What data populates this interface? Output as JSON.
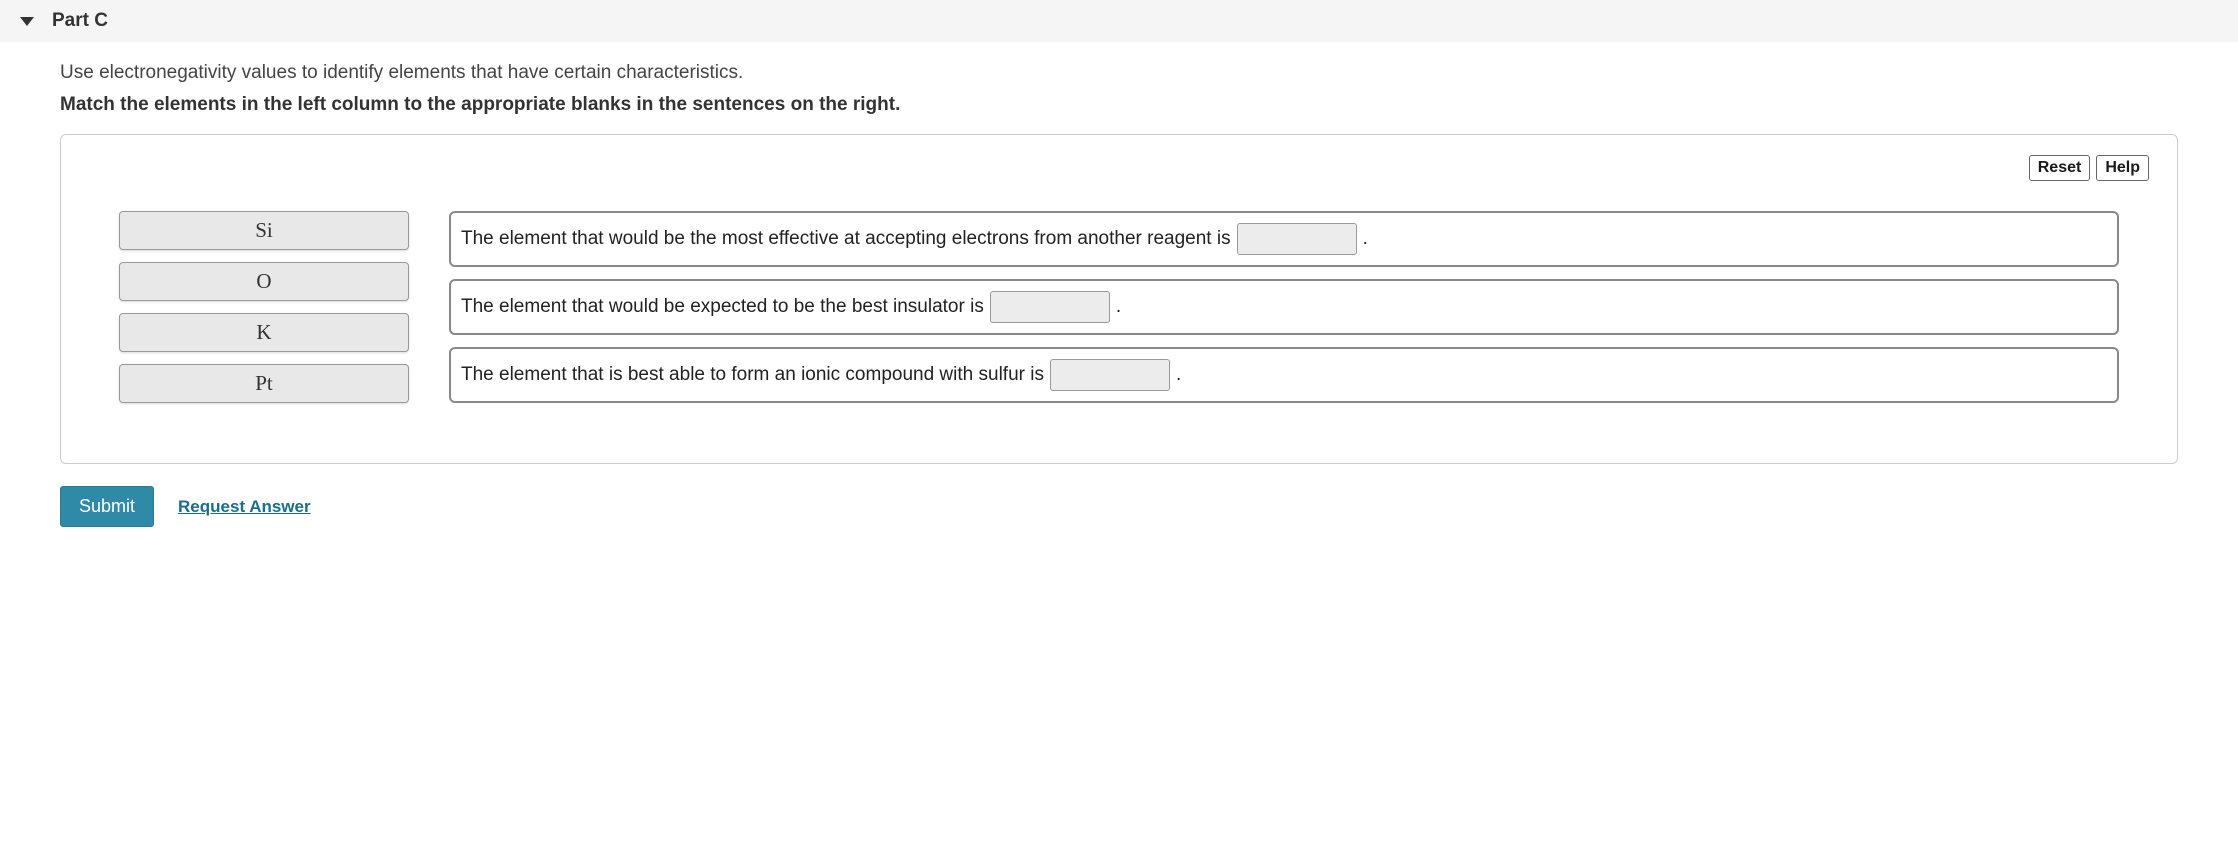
{
  "header": {
    "part_label": "Part C"
  },
  "intro": "Use electronegativity values to identify elements that have certain characteristics.",
  "instruction": "Match the elements in the left column to the appropriate blanks in the sentences on the right.",
  "buttons": {
    "reset": "Reset",
    "help": "Help",
    "submit": "Submit",
    "request_answer": "Request Answer"
  },
  "elements": {
    "e0": "Si",
    "e1": "O",
    "e2": "K",
    "e3": "Pt"
  },
  "sentences": {
    "s0_pre": "The element that would be the most effective at accepting electrons from another reagent is",
    "s0_post": ".",
    "s1_pre": "The element that would be expected to be the best insulator is",
    "s1_post": ".",
    "s2_pre": "The element that is best able to form an ionic compound with sulfur is",
    "s2_post": "."
  },
  "styling": {
    "header_bg": "#f5f5f5",
    "chip_bg": "#e8e8e8",
    "chip_border": "#999999",
    "sentence_border": "#888888",
    "submit_bg": "#2f8aa8",
    "submit_text": "#ffffff",
    "link_color": "#1a6d8e",
    "font_body": "Arial, Helvetica, sans-serif",
    "font_chip": "Times New Roman, serif"
  }
}
